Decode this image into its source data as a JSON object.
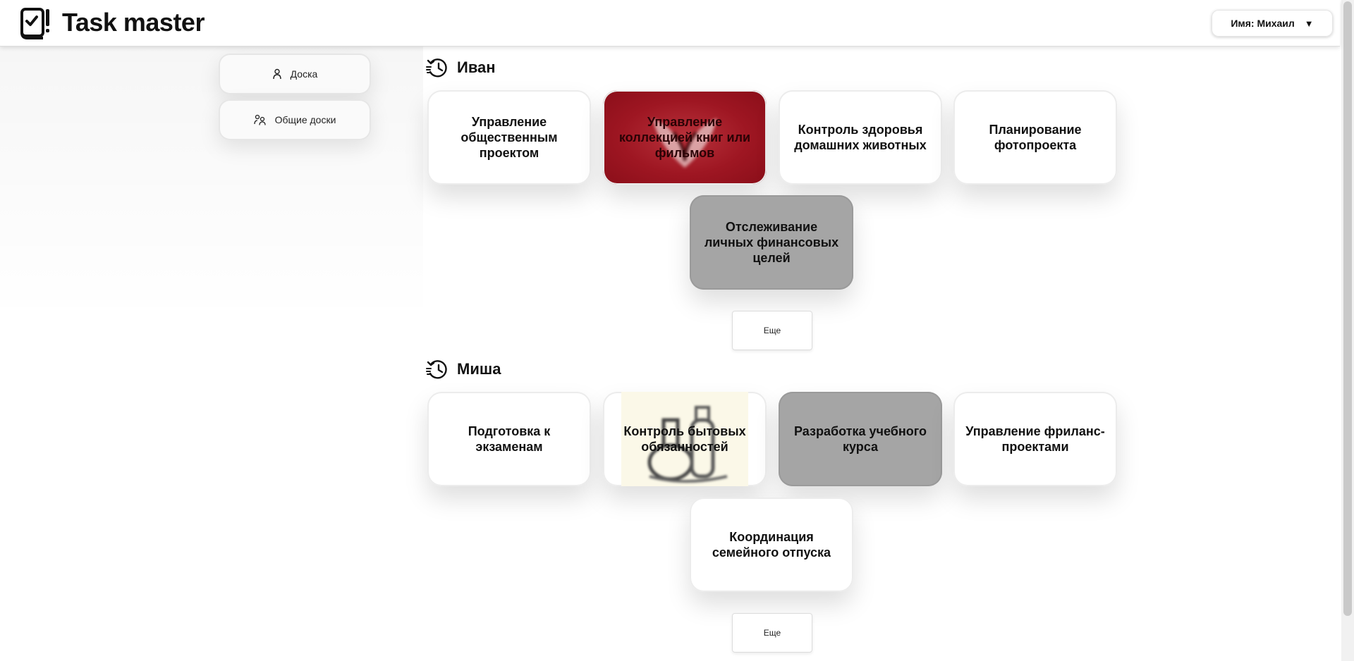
{
  "app": {
    "title": "Task master",
    "logo_icon": "notebook-check-icon"
  },
  "user_menu": {
    "label": "Имя: Михаил",
    "caret": "▼"
  },
  "sidebar": {
    "items": [
      {
        "label": "Доска",
        "icon": "user-icon"
      },
      {
        "label": "Общие доски",
        "icon": "users-icon"
      }
    ]
  },
  "sections": [
    {
      "name": "Иван",
      "icon": "history-icon",
      "cards": [
        {
          "title": "Управление общественным проектом",
          "style": "white"
        },
        {
          "title": "Управление коллекцией книг или фильмов",
          "style": "red-image"
        },
        {
          "title": "Контроль здоровья домашних животных",
          "style": "white"
        },
        {
          "title": "Планирование фотопроекта",
          "style": "white"
        },
        {
          "title": "Отслеживание личных финансовых целей",
          "style": "grey"
        }
      ],
      "more_label": "Еще"
    },
    {
      "name": "Миша",
      "icon": "history-icon",
      "cards": [
        {
          "title": "Подготовка к экзаменам",
          "style": "white"
        },
        {
          "title": "Контроль бытовых обязанностей",
          "style": "sketch-image"
        },
        {
          "title": "Разработка учебного курса",
          "style": "grey"
        },
        {
          "title": "Управление фриланс-проектами",
          "style": "white"
        },
        {
          "title": "Координация семейного отпуска",
          "style": "white"
        }
      ],
      "more_label": "Еще"
    }
  ],
  "colors": {
    "red_card": "#9e1622",
    "grey_card": "#a5a5a5",
    "sketch_bg": "#fbf8e8"
  }
}
